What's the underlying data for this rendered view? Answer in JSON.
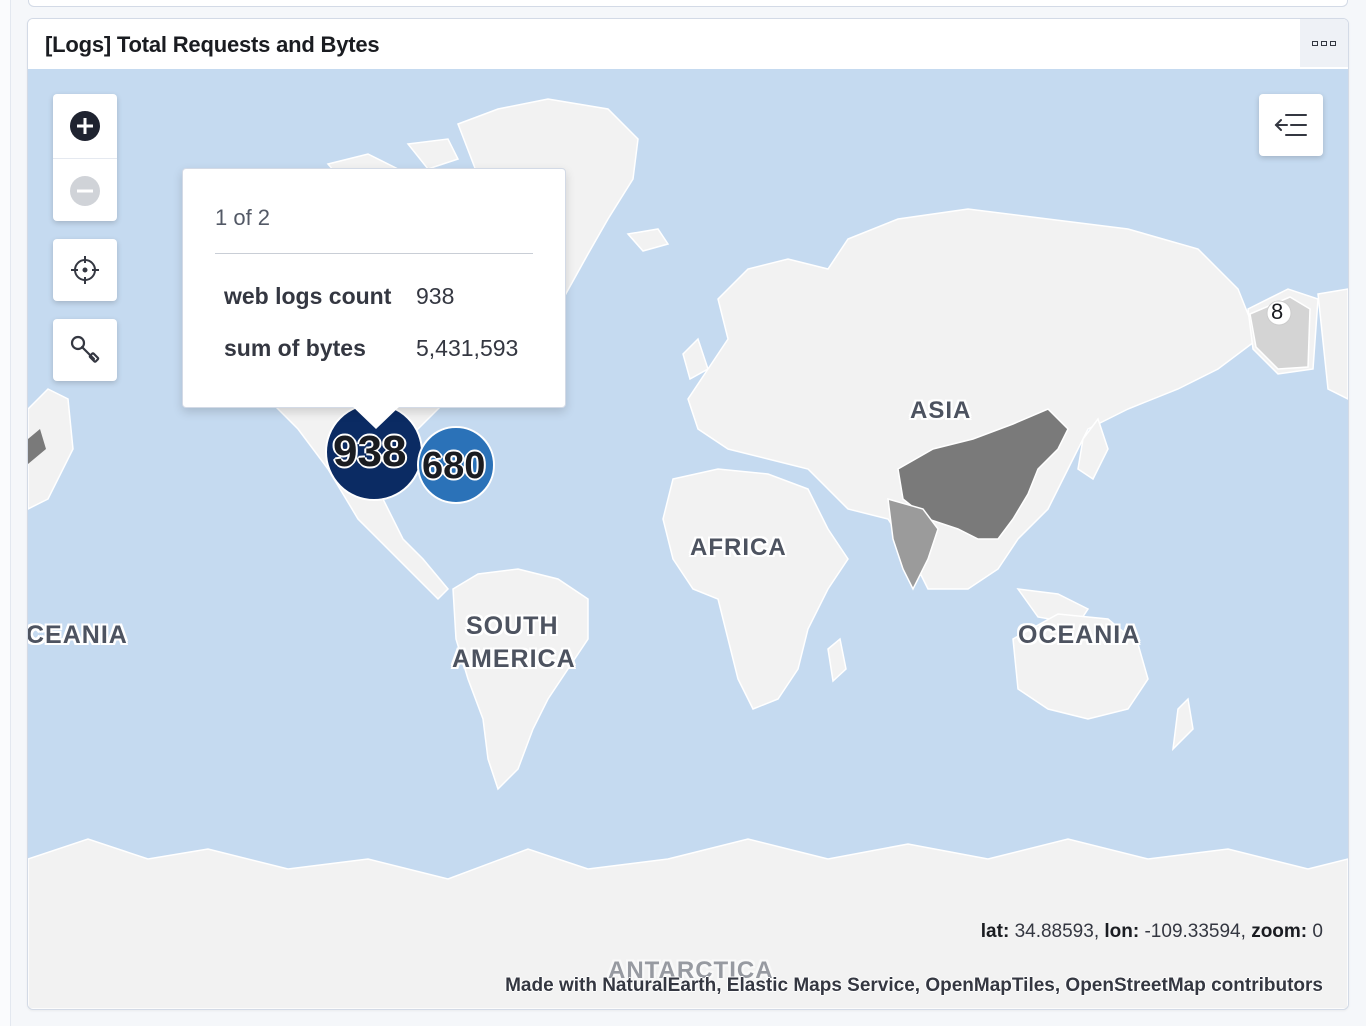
{
  "panel": {
    "title": "[Logs] Total Requests and Bytes"
  },
  "tooltip": {
    "pager": "1 of 2",
    "rows": [
      {
        "key": "web logs count",
        "value": "938"
      },
      {
        "key": "sum of bytes",
        "value": "5,431,593"
      }
    ]
  },
  "clusters": {
    "primary": "938",
    "secondary": "680",
    "alaska": "8"
  },
  "continent_labels": {
    "asia": "ASIA",
    "africa": "AFRICA",
    "south_america_1": "SOUTH",
    "south_america_2": "AMERICA",
    "oceania": "OCEANIA",
    "oceania_wrapped": "CEANIA",
    "antarctica": "ANTARCTICA"
  },
  "status": {
    "lat_label": "lat:",
    "lat": "34.88593",
    "lon_label": "lon:",
    "lon": "-109.33594",
    "zoom_label": "zoom:",
    "zoom": "0"
  },
  "attribution": "Made with NaturalEarth, Elastic Maps Service, OpenMapTiles, OpenStreetMap contributors",
  "icons": [
    "plus-icon",
    "minus-icon",
    "locate-icon",
    "wrench-icon",
    "legend-collapse-icon",
    "options-icon"
  ],
  "colors": {
    "water": "#c5daf0",
    "land": "#f2f2f2",
    "cluster_dark": "#0b2b63",
    "cluster_blue": "#2b72b8",
    "china": "#7a7a7a",
    "india": "#9b9b9b"
  }
}
